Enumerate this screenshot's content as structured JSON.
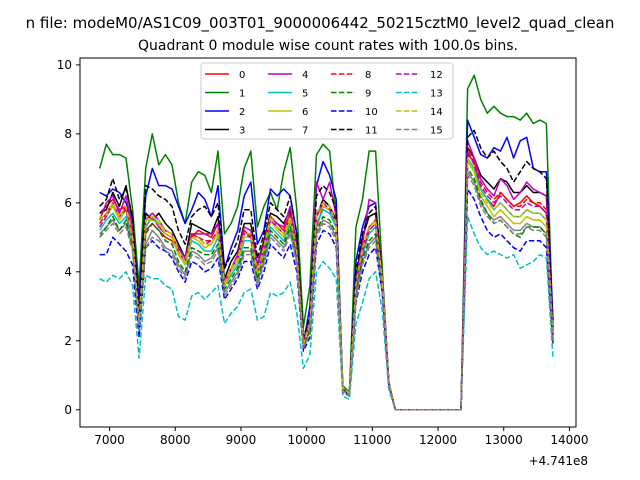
{
  "figure": {
    "suptitle": "n file: modeM0/AS1C09_003T01_9000006442_50215cztM0_level2_quad_clean",
    "title": "Quadrant 0 module wise count rates with 100.0s bins.",
    "offset_label": "+4.741e8"
  },
  "chart_data": {
    "type": "line",
    "title": "Quadrant 0 module wise count rates with 100.0s bins.",
    "xlabel": "",
    "ylabel": "",
    "xlim": [
      6550,
      14100
    ],
    "ylim": [
      -0.5,
      10.2
    ],
    "x_offset": "+4.741e8",
    "xticks": [
      7000,
      8000,
      9000,
      10000,
      11000,
      12000,
      13000,
      14000
    ],
    "xtick_labels": [
      "7000",
      "8000",
      "9000",
      "10000",
      "11000",
      "12000",
      "13000",
      "14000"
    ],
    "yticks": [
      0,
      2,
      4,
      6,
      8,
      10
    ],
    "ytick_labels": [
      "0",
      "2",
      "4",
      "6",
      "8",
      "10"
    ],
    "grid": false,
    "legend": {
      "placement": "top-center",
      "columns": 4
    },
    "x": [
      6850,
      6950,
      7050,
      7150,
      7250,
      7350,
      7450,
      7550,
      7650,
      7750,
      7850,
      7950,
      8050,
      8150,
      8250,
      8350,
      8450,
      8550,
      8650,
      8750,
      8850,
      8950,
      9050,
      9150,
      9250,
      9350,
      9450,
      9550,
      9650,
      9750,
      9850,
      9950,
      10050,
      10150,
      10250,
      10350,
      10450,
      10550,
      10650,
      10750,
      10850,
      10950,
      11050,
      11150,
      11250,
      11350,
      12250,
      12350,
      12450,
      12550,
      12650,
      12750,
      12850,
      12950,
      13050,
      13150,
      13250,
      13350,
      13450,
      13550,
      13650,
      13750
    ],
    "series": [
      {
        "name": "0",
        "color": "#ff0000",
        "dash": "solid",
        "values": [
          5.7,
          5.9,
          6.1,
          5.8,
          5.9,
          5.1,
          2.7,
          5.2,
          5.4,
          5.2,
          5.0,
          4.9,
          4.6,
          4.3,
          5.0,
          5.2,
          5.1,
          5.0,
          5.4,
          3.7,
          4.1,
          4.4,
          5.2,
          5.0,
          4.2,
          4.8,
          5.6,
          5.4,
          5.2,
          5.7,
          4.7,
          2.0,
          2.6,
          5.3,
          5.9,
          5.8,
          5.5,
          0.6,
          0.5,
          3.6,
          4.7,
          5.3,
          5.5,
          3.8,
          0.8,
          0.0,
          0.0,
          0.0,
          7.4,
          7.2,
          6.4,
          6.1,
          5.9,
          6.3,
          6.1,
          5.9,
          6.0,
          6.2,
          6.0,
          5.9,
          5.7,
          2.2
        ]
      },
      {
        "name": "1",
        "color": "#008000",
        "dash": "solid",
        "values": [
          7.0,
          7.7,
          7.4,
          7.4,
          7.3,
          5.8,
          3.6,
          7.0,
          8.0,
          7.1,
          7.4,
          7.1,
          6.0,
          5.4,
          6.6,
          6.9,
          6.8,
          6.3,
          7.5,
          5.1,
          5.4,
          5.9,
          7.0,
          7.5,
          5.3,
          5.9,
          6.3,
          5.8,
          6.9,
          7.6,
          5.8,
          2.4,
          3.6,
          7.4,
          7.7,
          7.5,
          5.6,
          0.7,
          0.5,
          5.3,
          6.1,
          7.5,
          7.5,
          4.1,
          0.8,
          0.0,
          0.0,
          0.0,
          9.3,
          9.7,
          9.0,
          8.6,
          8.8,
          8.6,
          8.5,
          8.5,
          8.4,
          8.6,
          8.3,
          8.4,
          8.3,
          2.1
        ]
      },
      {
        "name": "2",
        "color": "#0000ff",
        "dash": "solid",
        "values": [
          6.3,
          6.2,
          6.4,
          6.3,
          6.0,
          5.4,
          3.2,
          6.2,
          7.0,
          6.5,
          6.5,
          6.4,
          5.9,
          5.4,
          5.8,
          6.3,
          6.1,
          5.6,
          6.5,
          4.1,
          4.7,
          5.2,
          6.2,
          6.6,
          4.8,
          5.2,
          6.4,
          6.2,
          6.4,
          6.2,
          5.1,
          1.9,
          3.0,
          6.5,
          7.2,
          6.8,
          6.1,
          0.6,
          0.4,
          4.3,
          5.3,
          5.9,
          6.0,
          3.8,
          0.8,
          0.0,
          0.0,
          0.0,
          8.4,
          7.9,
          7.4,
          7.3,
          7.6,
          7.5,
          7.9,
          7.3,
          7.8,
          7.9,
          7.0,
          6.9,
          6.9,
          2.6
        ]
      },
      {
        "name": "3",
        "color": "#000000",
        "dash": "solid",
        "values": [
          5.7,
          5.8,
          6.3,
          5.9,
          6.5,
          5.5,
          2.6,
          5.7,
          5.5,
          5.7,
          5.4,
          5.2,
          4.8,
          4.4,
          5.4,
          5.3,
          5.2,
          5.1,
          5.6,
          3.8,
          4.3,
          4.6,
          5.4,
          5.4,
          4.2,
          4.9,
          5.7,
          5.6,
          5.4,
          5.8,
          4.8,
          2.0,
          2.6,
          5.6,
          6.1,
          5.9,
          5.5,
          0.6,
          0.5,
          3.8,
          5.0,
          5.6,
          5.7,
          3.8,
          0.8,
          0.0,
          0.0,
          0.0,
          7.6,
          7.3,
          6.8,
          6.6,
          6.4,
          6.7,
          6.6,
          6.3,
          6.3,
          6.5,
          6.3,
          6.3,
          6.2,
          2.3
        ]
      },
      {
        "name": "4",
        "color": "#bf00bf",
        "dash": "solid",
        "values": [
          5.5,
          6.0,
          6.2,
          5.7,
          6.2,
          5.3,
          2.6,
          5.3,
          5.6,
          5.3,
          5.1,
          5.0,
          4.7,
          4.4,
          5.1,
          5.1,
          5.1,
          5.1,
          5.4,
          3.7,
          4.1,
          4.5,
          5.3,
          5.2,
          4.2,
          4.8,
          5.6,
          5.4,
          5.3,
          5.9,
          4.7,
          2.0,
          2.6,
          6.6,
          6.1,
          6.6,
          5.6,
          0.6,
          0.5,
          3.8,
          4.8,
          6.1,
          6.0,
          3.8,
          0.8,
          0.0,
          0.0,
          0.0,
          7.8,
          7.3,
          6.7,
          6.4,
          6.2,
          6.7,
          6.5,
          6.1,
          6.3,
          6.6,
          6.4,
          6.3,
          6.2,
          2.3
        ]
      },
      {
        "name": "5",
        "color": "#00bfbf",
        "dash": "solid",
        "values": [
          5.2,
          5.5,
          5.7,
          5.4,
          5.6,
          4.9,
          2.4,
          5.3,
          5.6,
          5.4,
          5.1,
          5.0,
          4.5,
          4.2,
          4.9,
          4.8,
          4.6,
          4.6,
          5.0,
          3.6,
          3.9,
          4.2,
          4.9,
          4.9,
          3.9,
          4.5,
          5.3,
          5.1,
          4.9,
          5.4,
          4.5,
          1.9,
          2.4,
          5.4,
          5.8,
          5.7,
          5.3,
          0.6,
          0.5,
          3.5,
          4.5,
          5.1,
          5.3,
          3.7,
          0.8,
          0.0,
          0.0,
          0.0,
          7.3,
          7.0,
          6.4,
          6.1,
          5.8,
          6.0,
          5.8,
          5.6,
          5.6,
          5.8,
          5.7,
          5.7,
          5.5,
          2.1
        ]
      },
      {
        "name": "6",
        "color": "#bfbf00",
        "dash": "solid",
        "values": [
          5.6,
          5.6,
          5.9,
          5.5,
          5.8,
          5.0,
          2.5,
          5.5,
          5.5,
          5.4,
          5.1,
          5.0,
          4.5,
          4.2,
          5.0,
          4.9,
          4.7,
          4.8,
          5.1,
          3.6,
          4.0,
          4.3,
          5.0,
          5.0,
          3.9,
          4.6,
          5.5,
          5.2,
          5.0,
          5.5,
          4.6,
          1.9,
          2.4,
          5.6,
          5.9,
          5.8,
          5.4,
          0.6,
          0.5,
          3.5,
          4.6,
          5.2,
          5.4,
          3.7,
          0.8,
          0.0,
          0.0,
          0.0,
          7.2,
          6.9,
          6.2,
          5.9,
          5.6,
          5.8,
          5.6,
          5.4,
          5.4,
          5.6,
          5.5,
          5.5,
          5.3,
          2.0
        ]
      },
      {
        "name": "7",
        "color": "#808080",
        "dash": "solid",
        "values": [
          5.1,
          5.3,
          5.5,
          5.2,
          5.4,
          4.7,
          2.3,
          4.8,
          5.2,
          5.0,
          4.7,
          4.6,
          4.2,
          3.9,
          4.6,
          4.5,
          4.3,
          4.4,
          4.7,
          3.4,
          3.7,
          4.0,
          4.6,
          4.6,
          3.7,
          4.3,
          5.1,
          4.9,
          4.7,
          5.2,
          4.3,
          1.8,
          2.3,
          5.1,
          5.5,
          5.4,
          5.0,
          0.6,
          0.4,
          3.3,
          4.3,
          4.8,
          5.0,
          3.5,
          0.7,
          0.0,
          0.0,
          0.0,
          6.9,
          6.6,
          6.0,
          5.7,
          5.5,
          5.6,
          5.4,
          5.2,
          5.2,
          5.4,
          5.3,
          5.3,
          5.1,
          2.0
        ]
      },
      {
        "name": "8",
        "color": "#ff0000",
        "dash": "dashed",
        "values": [
          5.4,
          5.7,
          6.0,
          5.6,
          5.9,
          5.0,
          2.5,
          5.5,
          5.7,
          5.5,
          5.2,
          5.1,
          4.6,
          4.3,
          5.1,
          5.0,
          4.9,
          4.9,
          5.2,
          3.7,
          4.1,
          4.4,
          5.1,
          5.1,
          4.0,
          4.7,
          5.6,
          5.3,
          5.1,
          5.6,
          4.7,
          2.0,
          2.5,
          5.7,
          6.0,
          5.9,
          5.4,
          0.6,
          0.5,
          3.6,
          4.7,
          5.3,
          5.5,
          3.8,
          0.8,
          0.0,
          0.0,
          0.0,
          7.6,
          7.2,
          6.6,
          6.3,
          6.1,
          6.3,
          6.1,
          5.9,
          5.9,
          6.1,
          6.0,
          6.0,
          5.8,
          2.2
        ]
      },
      {
        "name": "9",
        "color": "#008000",
        "dash": "dashed",
        "values": [
          5.0,
          5.3,
          5.6,
          5.2,
          5.5,
          4.7,
          2.3,
          5.1,
          5.4,
          5.2,
          4.9,
          4.8,
          4.3,
          4.0,
          4.7,
          4.6,
          4.5,
          4.5,
          4.8,
          3.5,
          3.8,
          4.1,
          4.7,
          4.7,
          3.8,
          4.4,
          5.2,
          5.0,
          4.8,
          5.3,
          4.4,
          1.8,
          2.3,
          5.2,
          5.6,
          5.5,
          5.1,
          0.6,
          0.4,
          3.4,
          4.4,
          4.9,
          5.1,
          3.6,
          0.7,
          0.0,
          0.0,
          0.0,
          7.0,
          6.7,
          6.1,
          5.7,
          5.4,
          5.5,
          5.3,
          5.1,
          5.0,
          5.3,
          5.3,
          5.3,
          5.1,
          2.0
        ]
      },
      {
        "name": "10",
        "color": "#0000ff",
        "dash": "dashed",
        "values": [
          4.5,
          4.5,
          5.0,
          4.8,
          4.6,
          4.2,
          2.1,
          4.7,
          4.9,
          4.7,
          4.6,
          4.4,
          4.0,
          3.7,
          4.3,
          4.2,
          4.0,
          4.1,
          4.4,
          3.2,
          3.5,
          3.8,
          4.3,
          4.3,
          3.5,
          4.0,
          4.8,
          4.6,
          4.4,
          4.8,
          4.0,
          1.7,
          2.1,
          4.8,
          5.2,
          5.1,
          4.7,
          0.5,
          0.4,
          3.1,
          4.0,
          4.5,
          4.7,
          3.4,
          0.7,
          0.0,
          0.0,
          0.0,
          6.4,
          6.1,
          5.6,
          5.2,
          5.0,
          5.1,
          4.9,
          4.7,
          4.6,
          4.9,
          4.9,
          4.9,
          4.7,
          1.9
        ]
      },
      {
        "name": "11",
        "color": "#000000",
        "dash": "dashed",
        "values": [
          5.9,
          6.1,
          6.7,
          6.1,
          6.4,
          5.6,
          2.7,
          6.5,
          6.4,
          6.2,
          6.1,
          5.9,
          5.2,
          4.8,
          5.6,
          5.8,
          5.9,
          5.6,
          6.0,
          4.1,
          4.5,
          4.9,
          5.8,
          5.8,
          4.4,
          5.1,
          6.0,
          5.8,
          5.6,
          6.2,
          5.1,
          2.1,
          2.7,
          6.2,
          6.5,
          6.3,
          5.8,
          0.6,
          0.5,
          4.0,
          5.1,
          5.7,
          5.9,
          3.9,
          0.8,
          0.0,
          0.0,
          0.0,
          7.9,
          8.1,
          7.6,
          7.3,
          7.5,
          7.2,
          7.0,
          6.6,
          6.9,
          7.2,
          7.0,
          6.9,
          6.7,
          2.4
        ]
      },
      {
        "name": "12",
        "color": "#bf00bf",
        "dash": "dashed",
        "values": [
          5.3,
          5.6,
          6.0,
          5.6,
          5.8,
          5.0,
          2.5,
          5.5,
          5.7,
          5.5,
          5.2,
          5.1,
          4.6,
          4.3,
          5.1,
          5.0,
          4.8,
          4.9,
          5.2,
          3.7,
          4.1,
          4.4,
          5.1,
          5.0,
          4.0,
          4.6,
          5.5,
          5.3,
          5.1,
          5.6,
          4.6,
          1.9,
          2.5,
          5.6,
          6.0,
          5.8,
          5.4,
          0.6,
          0.5,
          3.6,
          4.6,
          5.2,
          5.4,
          3.8,
          0.8,
          0.0,
          0.0,
          0.0,
          7.5,
          7.1,
          6.5,
          6.2,
          6.0,
          6.2,
          6.0,
          5.8,
          5.8,
          6.0,
          5.9,
          5.9,
          5.7,
          2.2
        ]
      },
      {
        "name": "13",
        "color": "#00bfbf",
        "dash": "dashed",
        "values": [
          3.8,
          3.7,
          3.9,
          3.8,
          4.0,
          3.6,
          1.5,
          3.9,
          3.8,
          3.8,
          3.6,
          3.5,
          2.7,
          2.6,
          3.3,
          3.4,
          3.2,
          3.4,
          3.6,
          2.5,
          2.8,
          3.0,
          3.4,
          3.5,
          2.6,
          2.7,
          3.4,
          3.3,
          3.4,
          3.7,
          2.8,
          1.2,
          1.6,
          4.0,
          4.3,
          4.1,
          3.8,
          0.4,
          0.3,
          2.5,
          3.1,
          3.8,
          4.0,
          2.9,
          0.6,
          0.0,
          0.0,
          0.0,
          5.6,
          5.1,
          4.7,
          4.5,
          4.6,
          4.5,
          4.4,
          4.5,
          4.1,
          4.2,
          4.3,
          4.5,
          4.4,
          1.5
        ]
      },
      {
        "name": "14",
        "color": "#bfbf00",
        "dash": "dashed",
        "values": [
          5.5,
          5.7,
          6.0,
          5.6,
          5.9,
          5.0,
          2.5,
          5.5,
          5.6,
          5.5,
          5.2,
          5.1,
          4.6,
          4.3,
          5.0,
          5.0,
          4.8,
          4.8,
          5.2,
          3.7,
          4.1,
          4.4,
          5.1,
          5.1,
          4.0,
          4.7,
          5.6,
          5.3,
          5.1,
          5.6,
          4.6,
          1.9,
          2.5,
          5.7,
          6.0,
          5.9,
          5.4,
          0.6,
          0.5,
          3.6,
          4.7,
          5.3,
          5.5,
          3.8,
          0.8,
          0.0,
          0.0,
          0.0,
          7.3,
          6.9,
          6.3,
          6.0,
          5.8,
          6.0,
          5.8,
          5.6,
          5.6,
          5.8,
          5.7,
          5.7,
          5.5,
          2.1
        ]
      },
      {
        "name": "15",
        "color": "#808080",
        "dash": "dashed",
        "values": [
          5.0,
          5.2,
          5.4,
          5.1,
          5.3,
          4.6,
          2.3,
          4.7,
          5.0,
          4.9,
          4.6,
          4.5,
          4.1,
          3.8,
          4.5,
          4.4,
          4.2,
          4.3,
          4.6,
          3.3,
          3.6,
          3.9,
          4.5,
          4.5,
          3.6,
          4.2,
          5.0,
          4.8,
          4.6,
          5.1,
          4.2,
          1.8,
          2.2,
          5.0,
          5.4,
          5.3,
          4.9,
          0.5,
          0.4,
          3.2,
          4.2,
          4.7,
          4.9,
          3.4,
          0.7,
          0.0,
          0.0,
          0.0,
          6.8,
          6.5,
          5.9,
          5.6,
          5.4,
          5.5,
          5.3,
          5.1,
          5.1,
          5.3,
          5.2,
          5.2,
          5.0,
          1.9
        ]
      }
    ]
  }
}
